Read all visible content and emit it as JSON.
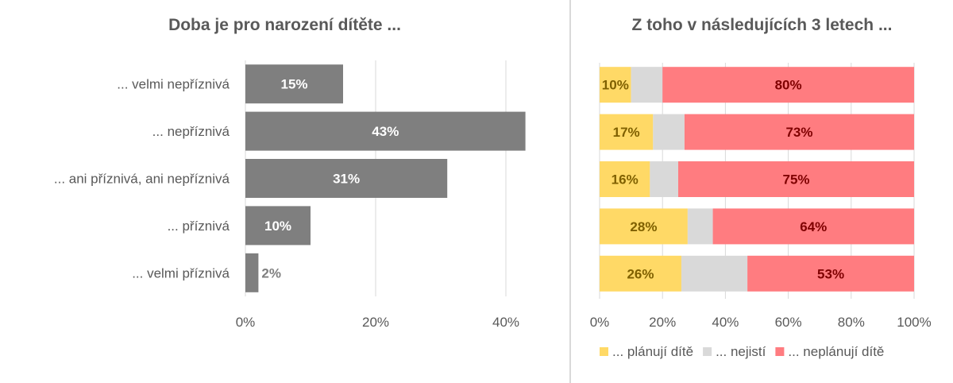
{
  "chart_data": [
    {
      "type": "bar",
      "orientation": "horizontal",
      "title": "Doba je pro narození dítěte ...",
      "categories": [
        "... velmi nepříznivá",
        "... nepříznivá",
        "... ani příznivá, ani nepříznivá",
        "... příznivá",
        "... velmi příznivá"
      ],
      "values": [
        15,
        43,
        31,
        10,
        2
      ],
      "data_labels": [
        "15%",
        "43%",
        "31%",
        "10%",
        "2%"
      ],
      "xlim": [
        0,
        45
      ],
      "x_ticks": [
        0,
        20,
        40
      ],
      "x_tick_labels": [
        "0%",
        "20%",
        "40%"
      ],
      "grid": true,
      "bar_color": "#7f7f7f"
    },
    {
      "type": "bar",
      "orientation": "horizontal",
      "stacked": "percent",
      "title": "Z toho v následujících 3 letech ...",
      "categories": [
        "... velmi nepříznivá",
        "... nepříznivá",
        "... ani příznivá, ani nepříznivá",
        "... příznivá",
        "... velmi příznivá"
      ],
      "series": [
        {
          "name": "... plánují dítě",
          "values": [
            10,
            17,
            16,
            28,
            26
          ],
          "labels": [
            "10%",
            "17%",
            "16%",
            "28%",
            "26%"
          ],
          "color": "#ffd966",
          "label_color": "#7f6000"
        },
        {
          "name": "... nejistí",
          "values": [
            10,
            10,
            9,
            8,
            21
          ],
          "labels": [
            "",
            "",
            "",
            "",
            ""
          ],
          "color": "#d9d9d9",
          "label_color": "#595959"
        },
        {
          "name": "... neplánují dítě",
          "values": [
            80,
            73,
            75,
            64,
            53
          ],
          "labels": [
            "80%",
            "73%",
            "75%",
            "64%",
            "53%"
          ],
          "color": "#ff7c80",
          "label_color": "#7f0000"
        }
      ],
      "xlim": [
        0,
        100
      ],
      "x_ticks": [
        0,
        20,
        40,
        60,
        80,
        100
      ],
      "x_tick_labels": [
        "0%",
        "20%",
        "40%",
        "60%",
        "80%",
        "100%"
      ],
      "grid": true,
      "legend": "bottom"
    }
  ]
}
